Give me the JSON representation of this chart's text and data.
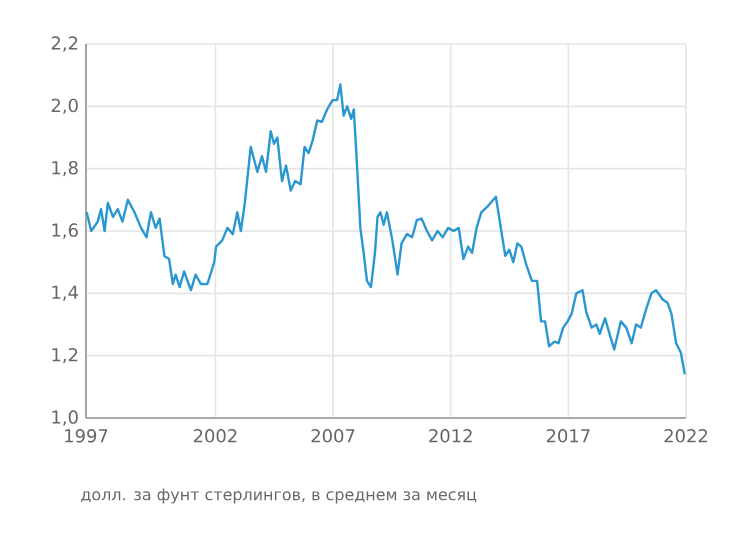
{
  "chart_data": {
    "type": "line",
    "x": [
      1996.53,
      1996.72,
      1997.0,
      1997.14,
      1997.29,
      1997.43,
      1997.65,
      1997.85,
      1998.05,
      1998.28,
      1998.56,
      1998.84,
      1999.07,
      1999.26,
      1999.46,
      1999.63,
      1999.83,
      2000.03,
      2000.19,
      2000.31,
      2000.48,
      2000.67,
      2000.96,
      2001.16,
      2001.38,
      2001.66,
      2001.95,
      2002.03,
      2002.29,
      2002.51,
      2002.74,
      2002.93,
      2003.08,
      2003.25,
      2003.5,
      2003.78,
      2003.98,
      2004.15,
      2004.35,
      2004.49,
      2004.63,
      2004.83,
      2005.0,
      2005.2,
      2005.39,
      2005.62,
      2005.79,
      2005.96,
      2006.13,
      2006.33,
      2006.52,
      2006.75,
      2006.98,
      2007.17,
      2007.31,
      2007.45,
      2007.6,
      2007.77,
      2007.88,
      2007.99,
      2008.16,
      2008.3,
      2008.44,
      2008.61,
      2008.78,
      2008.89,
      2009.01,
      2009.15,
      2009.29,
      2009.52,
      2009.74,
      2009.91,
      2010.14,
      2010.36,
      2010.56,
      2010.76,
      2010.99,
      2011.21,
      2011.44,
      2011.66,
      2011.89,
      2012.12,
      2012.34,
      2012.54,
      2012.74,
      2012.91,
      2013.1,
      2013.3,
      2013.58,
      2013.92,
      2014.15,
      2014.32,
      2014.49,
      2014.66,
      2014.83,
      2015.0,
      2015.22,
      2015.45,
      2015.67,
      2015.84,
      2016.01,
      2016.18,
      2016.41,
      2016.58,
      2016.78,
      2016.97,
      2017.14,
      2017.34,
      2017.6,
      2017.76,
      2017.99,
      2018.19,
      2018.33,
      2018.56,
      2018.75,
      2018.95,
      2019.23,
      2019.46,
      2019.69,
      2019.88,
      2020.08,
      2020.31,
      2020.53,
      2020.73,
      2021.01,
      2021.21,
      2021.38,
      2021.58,
      2021.78,
      2021.95
    ],
    "series": [
      {
        "color": "#2a97d0",
        "values": [
          1.66,
          1.6,
          1.63,
          1.67,
          1.6,
          1.69,
          1.645,
          1.67,
          1.63,
          1.7,
          1.66,
          1.61,
          1.58,
          1.66,
          1.61,
          1.64,
          1.52,
          1.51,
          1.43,
          1.46,
          1.42,
          1.47,
          1.41,
          1.46,
          1.43,
          1.43,
          1.5,
          1.55,
          1.57,
          1.61,
          1.59,
          1.66,
          1.6,
          1.69,
          1.87,
          1.79,
          1.84,
          1.79,
          1.92,
          1.88,
          1.9,
          1.76,
          1.81,
          1.73,
          1.76,
          1.75,
          1.87,
          1.85,
          1.89,
          1.955,
          1.95,
          1.99,
          2.02,
          2.02,
          2.07,
          1.97,
          2.0,
          1.96,
          1.99,
          1.85,
          1.61,
          1.53,
          1.44,
          1.42,
          1.53,
          1.645,
          1.66,
          1.62,
          1.66,
          1.57,
          1.46,
          1.56,
          1.59,
          1.58,
          1.635,
          1.64,
          1.6,
          1.57,
          1.6,
          1.58,
          1.61,
          1.6,
          1.61,
          1.51,
          1.55,
          1.53,
          1.61,
          1.66,
          1.68,
          1.71,
          1.6,
          1.52,
          1.54,
          1.5,
          1.56,
          1.55,
          1.49,
          1.44,
          1.44,
          1.31,
          1.31,
          1.23,
          1.245,
          1.24,
          1.29,
          1.31,
          1.335,
          1.4,
          1.41,
          1.34,
          1.29,
          1.3,
          1.27,
          1.32,
          1.27,
          1.22,
          1.31,
          1.29,
          1.24,
          1.3,
          1.29,
          1.35,
          1.4,
          1.41,
          1.38,
          1.37,
          1.335,
          1.24,
          1.21,
          1.14
        ]
      }
    ],
    "xlim": [
      1996.5,
      2022
    ],
    "xticks": [
      {
        "value": 1996.5,
        "label": "1997"
      },
      2002,
      2007,
      2012,
      2017,
      2022
    ],
    "ylim": [
      1.0,
      2.2
    ],
    "yticks": [
      {
        "value": 1.0,
        "label": "1,0"
      },
      {
        "value": 1.2,
        "label": "1,2"
      },
      {
        "value": 1.4,
        "label": "1,4"
      },
      {
        "value": 1.6,
        "label": "1,6"
      },
      {
        "value": 1.8,
        "label": "1,8"
      },
      {
        "value": 2.0,
        "label": "2,0"
      },
      {
        "value": 2.2,
        "label": "2,2"
      }
    ],
    "grid": true,
    "annotations": [
      "долл. за фунт стерлингов, в среднем за месяц"
    ]
  }
}
